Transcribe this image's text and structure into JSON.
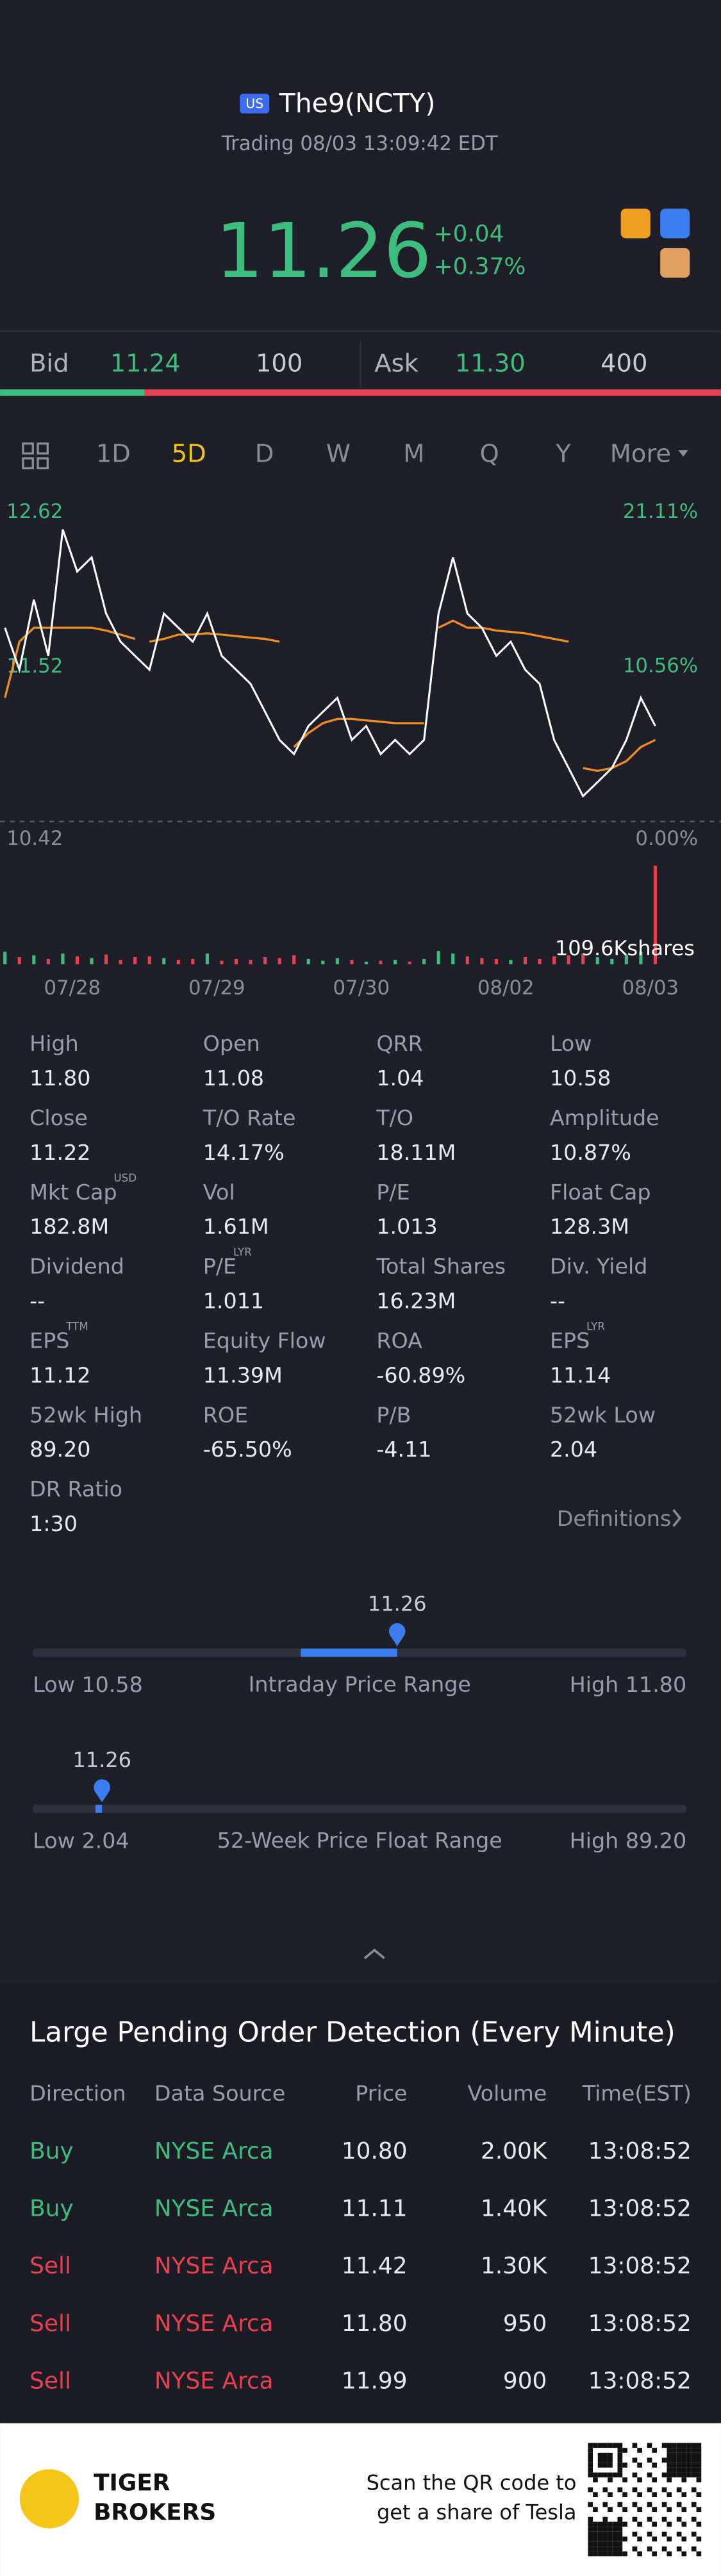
{
  "header": {
    "market": "US",
    "symbol": "The9(NCTY)",
    "status": "Trading 08/03 13:09:42 EDT",
    "price": "11.26",
    "change": "+0.04",
    "change_pct": "+0.37%"
  },
  "quote": {
    "bid_label": "Bid",
    "bid": "11.24",
    "bid_size": "100",
    "ask_label": "Ask",
    "ask": "11.30",
    "ask_size": "400"
  },
  "tabs": [
    "1D",
    "5D",
    "D",
    "W",
    "M",
    "Q",
    "Y",
    "More"
  ],
  "active_tab_index": 1,
  "chart": {
    "type": "line",
    "ylim": [
      10.42,
      12.62
    ],
    "yticks": [
      12.62,
      11.52,
      10.42
    ],
    "y2lim": [
      0,
      21.11
    ],
    "y2ticks": [
      {
        "value": 21.11,
        "label": "21.11%"
      },
      {
        "value": 10.56,
        "label": "10.56%"
      },
      {
        "value": 0,
        "label": "0.00%"
      }
    ],
    "volume_label": "109.6Kshares",
    "volume_max": 109.6,
    "days": [
      {
        "label": "07/28",
        "prices": [
          11.8,
          11.5,
          12.0,
          11.6,
          12.5,
          12.2,
          12.3,
          11.9,
          11.7,
          11.6
        ],
        "avg": [
          11.3,
          11.7,
          11.8,
          11.8,
          11.8,
          11.8,
          11.8,
          11.78,
          11.75,
          11.72
        ],
        "volumes": [
          14,
          8,
          10,
          6,
          12,
          9,
          7,
          11,
          5,
          8
        ]
      },
      {
        "label": "07/29",
        "prices": [
          11.5,
          11.9,
          11.8,
          11.7,
          11.9,
          11.6,
          11.5,
          11.4,
          11.2,
          11.0
        ],
        "avg": [
          11.7,
          11.72,
          11.75,
          11.75,
          11.76,
          11.75,
          11.74,
          11.73,
          11.72,
          11.7
        ],
        "volumes": [
          9,
          7,
          5,
          6,
          12,
          4,
          6,
          5,
          8,
          7
        ]
      },
      {
        "label": "07/30",
        "prices": [
          10.9,
          11.1,
          11.2,
          11.3,
          11.0,
          11.1,
          10.9,
          11.0,
          10.9,
          11.0
        ],
        "avg": [
          10.95,
          11.05,
          11.12,
          11.15,
          11.15,
          11.14,
          11.13,
          11.12,
          11.12,
          11.12
        ],
        "volumes": [
          10,
          6,
          4,
          7,
          5,
          3,
          4,
          5,
          3,
          6
        ]
      },
      {
        "label": "08/02",
        "prices": [
          11.9,
          12.3,
          11.9,
          11.8,
          11.6,
          11.7,
          11.5,
          11.4,
          11.0,
          10.8
        ],
        "avg": [
          11.8,
          11.85,
          11.8,
          11.8,
          11.78,
          11.77,
          11.76,
          11.74,
          11.72,
          11.7
        ],
        "volumes": [
          15,
          12,
          9,
          7,
          6,
          5,
          8,
          6,
          9,
          10
        ]
      },
      {
        "label": "08/03",
        "prices": [
          10.6,
          10.7,
          10.8,
          11.0,
          11.3,
          11.1
        ],
        "avg": [
          10.8,
          10.78,
          10.8,
          10.85,
          10.95,
          11.0
        ],
        "volumes": [
          12,
          8,
          6,
          10,
          14,
          109.6
        ]
      }
    ]
  },
  "stats": [
    {
      "label": "High",
      "value": "11.80"
    },
    {
      "label": "Open",
      "value": "11.08"
    },
    {
      "label": "QRR",
      "value": "1.04"
    },
    {
      "label": "Low",
      "value": "10.58"
    },
    {
      "label": "Close",
      "value": "11.22"
    },
    {
      "label": "T/O Rate",
      "value": "14.17%"
    },
    {
      "label": "T/O",
      "value": "18.11M"
    },
    {
      "label": "Amplitude",
      "value": "10.87%"
    },
    {
      "label": "Mkt Cap",
      "note": "USD",
      "value": "182.8M"
    },
    {
      "label": "Vol",
      "value": "1.61M"
    },
    {
      "label": "P/E",
      "value": "1.013"
    },
    {
      "label": "Float Cap",
      "value": "128.3M"
    },
    {
      "label": "Dividend",
      "value": "--"
    },
    {
      "label": "P/E",
      "note": "LYR",
      "value": "1.011"
    },
    {
      "label": "Total Shares",
      "value": "16.23M"
    },
    {
      "label": "Div. Yield",
      "value": "--"
    },
    {
      "label": "EPS",
      "note": "TTM",
      "value": "11.12"
    },
    {
      "label": "Equity Flow",
      "value": "11.39M"
    },
    {
      "label": "ROA",
      "value": "-60.89%"
    },
    {
      "label": "EPS",
      "note": "LYR",
      "value": "11.14"
    },
    {
      "label": "52wk High",
      "value": "89.20"
    },
    {
      "label": "ROE",
      "value": "-65.50%"
    },
    {
      "label": "P/B",
      "value": "-4.11"
    },
    {
      "label": "52wk Low",
      "value": "2.04"
    },
    {
      "label": "DR Ratio",
      "value": "1:30"
    }
  ],
  "definitions": "Definitions",
  "ranges": [
    {
      "title": "Intraday Price Range",
      "low_word": "Low",
      "high_word": "High",
      "low": {
        "value": 10.58,
        "label": "10.58"
      },
      "high": {
        "value": 11.8,
        "label": "11.80"
      },
      "current": 11.26
    },
    {
      "title": "52-Week Price Float Range",
      "low_word": "Low",
      "high_word": "High",
      "low": 2.04,
      "high": {
        "value": 89.2,
        "label": "89.20"
      },
      "current": 11.26
    }
  ],
  "orders": {
    "title": "Large Pending Order Detection (Every Minute)",
    "columns": [
      "Direction",
      "Data Source",
      "Price",
      "Volume",
      "Time(EST)"
    ],
    "rows": [
      {
        "color": "#3dbd7d",
        "cells": [
          "Buy",
          "NYSE Arca",
          "10.80",
          "2.00K",
          "13:08:52"
        ]
      },
      {
        "color": "#3dbd7d",
        "cells": [
          "Buy",
          "NYSE Arca",
          "11.11",
          "1.40K",
          "13:08:52"
        ]
      },
      {
        "color": "#e8404e",
        "cells": [
          "Sell",
          "NYSE Arca",
          "11.42",
          "1.30K",
          "13:08:52"
        ]
      },
      {
        "color": "#e8404e",
        "cells": [
          "Sell",
          "NYSE Arca",
          "11.80",
          "950",
          "13:08:52"
        ]
      },
      {
        "color": "#e8404e",
        "cells": [
          "Sell",
          "NYSE Arca",
          "11.99",
          "900",
          "13:08:52"
        ]
      }
    ]
  },
  "footer": {
    "brand1": "TIGER",
    "brand2": "BROKERS",
    "line1": "Scan the QR code to",
    "line2": "get a share of Tesla"
  }
}
